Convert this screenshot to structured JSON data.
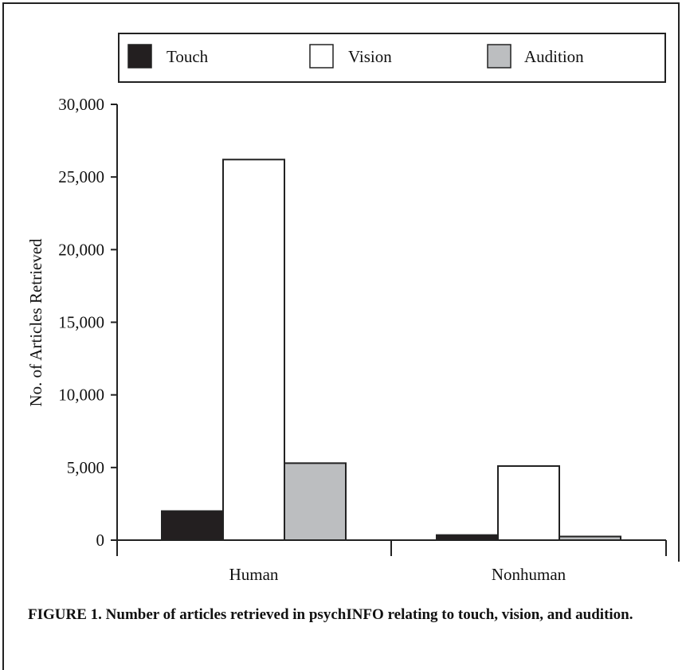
{
  "chart_data": {
    "type": "bar",
    "categories": [
      "Human",
      "Nonhuman"
    ],
    "series": [
      {
        "name": "Touch",
        "values": [
          2000,
          350
        ],
        "color": "#231f20"
      },
      {
        "name": "Vision",
        "values": [
          26200,
          5100
        ],
        "color": "#ffffff"
      },
      {
        "name": "Audition",
        "values": [
          5300,
          250
        ],
        "color": "#bcbec0"
      }
    ],
    "ylabel": "No. of Articles Retrieved",
    "xlabel": "",
    "ylim": [
      0,
      30000
    ],
    "yticks": [
      0,
      5000,
      10000,
      15000,
      20000,
      25000,
      30000
    ],
    "ytick_labels": [
      "0",
      "5,000",
      "10,000",
      "15,000",
      "20,000",
      "25,000",
      "30,000"
    ],
    "legend": "top",
    "grid": false
  },
  "caption": {
    "label": "FIGURE 1.",
    "text": "Number of articles retrieved in psychINFO relating to touch, vision, and audition."
  }
}
